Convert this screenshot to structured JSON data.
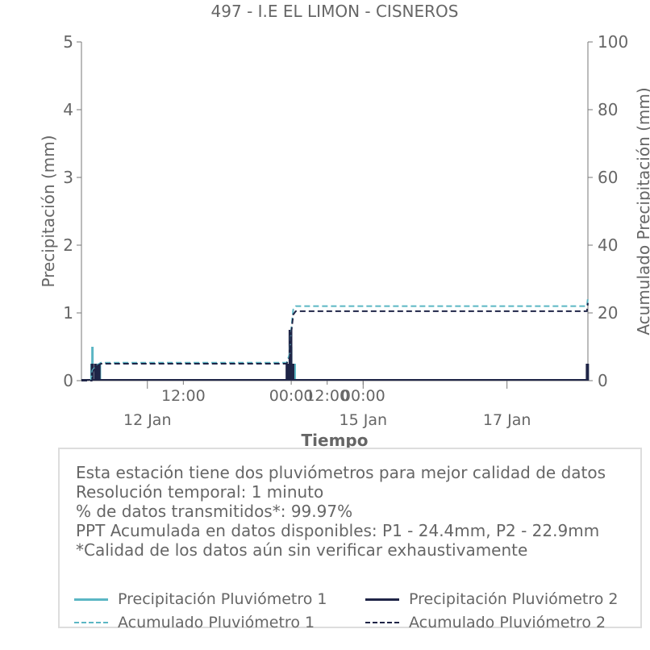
{
  "chart_data": {
    "type": "bar+line",
    "title": "497 - I.E EL LIMON - CISNEROS",
    "xlabel": "Tiempo",
    "ylabel": "Precipitación (mm)",
    "y2label": "Acumulado Precipitación (mm)",
    "ylim": [
      0,
      5
    ],
    "y2lim": [
      0,
      100
    ],
    "yticks": [
      "0",
      "1",
      "2",
      "3",
      "4",
      "5"
    ],
    "y2ticks": [
      "0",
      "20",
      "40",
      "60",
      "80",
      "100"
    ],
    "xlim": [
      "2021-01-11T02:00",
      "2021-01-18T03:00"
    ],
    "xticks_major": [
      {
        "t": "2021-01-12T00:00",
        "label": "12 Jan"
      },
      {
        "t": "2021-01-15T00:00",
        "label": "15 Jan"
      },
      {
        "t": "2021-01-17T00:00",
        "label": "17 Jan"
      }
    ],
    "xticks_minor": [
      {
        "t": "2021-01-12T12:00",
        "label": "12:00"
      },
      {
        "t": "2021-01-14T00:00",
        "label": "00:00"
      },
      {
        "t": "2021-01-14T12:00",
        "label": "12:00"
      },
      {
        "t": "2021-01-15T00:00",
        "label": "00:00"
      }
    ],
    "series": [
      {
        "name": "Precipitación Pluviómetro 1",
        "kind": "bar",
        "color": "#5bb6c4",
        "x": [
          "2021-01-11T05:20",
          "2021-01-11T05:40",
          "2021-01-11T07:00",
          "2021-01-11T08:10",
          "2021-01-13T22:50",
          "2021-01-13T23:30",
          "2021-01-13T23:50",
          "2021-01-14T00:00",
          "2021-01-14T01:00",
          "2021-01-14T01:10",
          "2021-01-18T02:50"
        ],
        "y": [
          0.25,
          0.5,
          0.25,
          0.25,
          0.25,
          0.25,
          0.25,
          0.5,
          0.25,
          0.25,
          0.25
        ]
      },
      {
        "name": "Precipitación Pluviómetro 2",
        "kind": "bar",
        "color": "#1f2547",
        "x": [
          "2021-01-11T05:40",
          "2021-01-11T06:50",
          "2021-01-11T07:10",
          "2021-01-11T07:30",
          "2021-01-11T07:50",
          "2021-01-13T22:40",
          "2021-01-13T23:00",
          "2021-01-13T23:20",
          "2021-01-13T23:40",
          "2021-01-13T23:50",
          "2021-01-14T00:10",
          "2021-01-14T00:30",
          "2021-01-18T02:50"
        ],
        "y": [
          0.25,
          0.25,
          0.25,
          0.25,
          0.25,
          0.25,
          0.25,
          0.25,
          0.75,
          0.75,
          0.25,
          0.25,
          0.25
        ]
      },
      {
        "name": "Acumulado Pluviómetro 1",
        "kind": "line",
        "dash": true,
        "color": "#5bb6c4",
        "x": [
          "2021-01-11T02:00",
          "2021-01-11T05:10",
          "2021-01-11T05:40",
          "2021-01-11T07:00",
          "2021-01-11T08:30",
          "2021-01-13T22:30",
          "2021-01-13T23:30",
          "2021-01-14T00:00",
          "2021-01-14T00:40",
          "2021-01-14T01:30",
          "2021-01-18T02:40",
          "2021-01-18T03:00"
        ],
        "y": [
          0,
          0,
          3,
          4.5,
          5.3,
          5.3,
          8,
          15,
          21,
          22,
          22,
          24.4
        ]
      },
      {
        "name": "Acumulado Pluviómetro 2",
        "kind": "line",
        "dash": true,
        "color": "#1f2547",
        "x": [
          "2021-01-11T02:00",
          "2021-01-11T05:30",
          "2021-01-11T06:00",
          "2021-01-11T07:30",
          "2021-01-11T08:30",
          "2021-01-13T22:30",
          "2021-01-13T23:30",
          "2021-01-14T00:00",
          "2021-01-14T00:40",
          "2021-01-14T01:30",
          "2021-01-18T02:40",
          "2021-01-18T03:00"
        ],
        "y": [
          0,
          0,
          3,
          4.5,
          5,
          5,
          7,
          14,
          19.5,
          20.5,
          20.5,
          22.9
        ]
      }
    ]
  },
  "info": {
    "lines": [
      "Esta estación tiene dos pluviómetros para mejor calidad de datos",
      "Resolución temporal: 1 minuto",
      "% de datos transmitidos*: 99.97%",
      "PPT Acumulada en datos disponibles: P1 - 24.4mm, P2 - 22.9mm",
      "*Calidad de los datos aún sin verificar exhaustivamente"
    ]
  },
  "legend": {
    "items": [
      {
        "label": "Precipitación Pluviómetro 1"
      },
      {
        "label": "Precipitación Pluviómetro 2"
      },
      {
        "label": "Acumulado Pluviómetro 1"
      },
      {
        "label": "Acumulado Pluviómetro 2"
      }
    ]
  }
}
